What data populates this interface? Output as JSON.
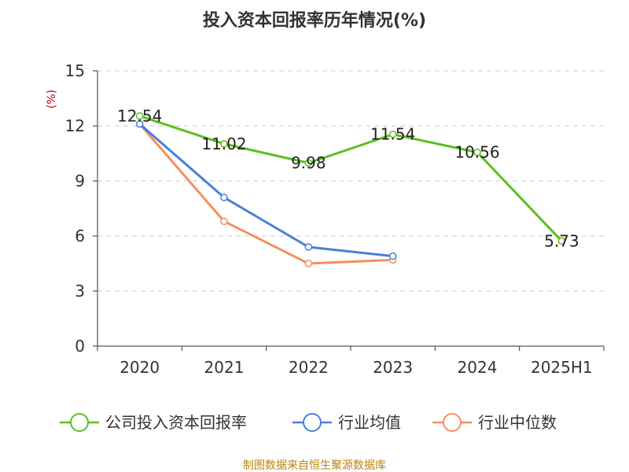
{
  "chart_data": {
    "type": "line",
    "title": "投入资本回报率历年情况(%)",
    "ylabel": "(%)",
    "xlabel": "",
    "categories": [
      "2020",
      "2021",
      "2022",
      "2023",
      "2024",
      "2025H1"
    ],
    "ylim": [
      0,
      15
    ],
    "yticks": [
      0,
      3,
      6,
      9,
      12,
      15
    ],
    "grid": "horizontal-dashed",
    "legend_position": "bottom",
    "series": [
      {
        "name": "公司投入资本回报率",
        "color": "#5cbf1f",
        "values": [
          12.54,
          11.02,
          9.98,
          11.54,
          10.56,
          5.73
        ],
        "labels": [
          "12.54",
          "11.02",
          "9.98",
          "11.54",
          "10.56",
          "5.73"
        ]
      },
      {
        "name": "行业均值",
        "color": "#4a7fdb",
        "values": [
          12.1,
          8.1,
          5.4,
          4.9,
          null,
          null
        ]
      },
      {
        "name": "行业中位数",
        "color": "#f5905a",
        "values": [
          12.1,
          6.8,
          4.5,
          4.7,
          null,
          null
        ]
      }
    ]
  },
  "footer": {
    "source": "制图数据来自恒生聚源数据库"
  }
}
